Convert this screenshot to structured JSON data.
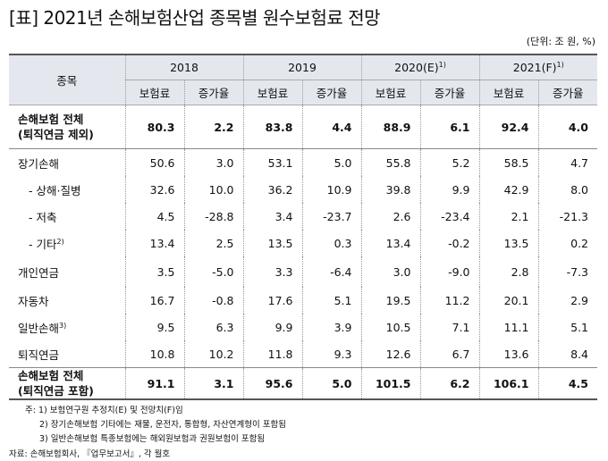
{
  "title": "[표] 2021년 손해보험산업 종목별 원수보험료 전망",
  "unit": "(단위: 조 원, %)",
  "table": {
    "corner": "종목",
    "years": [
      {
        "label": "2018"
      },
      {
        "label": "2019"
      },
      {
        "label": "2020(E)",
        "sup": "1)"
      },
      {
        "label": "2021(F)",
        "sup": "1)"
      }
    ],
    "sub": [
      "보험료",
      "증가율",
      "보험료",
      "증가율",
      "보험료",
      "증가율",
      "보험료",
      "증가율"
    ],
    "rows": [
      {
        "label": [
          "손해보험 전체",
          "(퇴직연금 제외)"
        ],
        "values": [
          "80.3",
          "2.2",
          "83.8",
          "4.4",
          "88.9",
          "6.1",
          "92.4",
          "4.0"
        ]
      },
      {
        "label": [
          "장기손해"
        ],
        "values": [
          "50.6",
          "3.0",
          "53.1",
          "5.0",
          "55.8",
          "5.2",
          "58.5",
          "4.7"
        ]
      },
      {
        "label": [
          "- 상해·질병"
        ],
        "values": [
          "32.6",
          "10.0",
          "36.2",
          "10.9",
          "39.8",
          "9.9",
          "42.9",
          "8.0"
        ]
      },
      {
        "label": [
          "- 저축"
        ],
        "values": [
          "4.5",
          "-28.8",
          "3.4",
          "-23.7",
          "2.6",
          "-23.4",
          "2.1",
          "-21.3"
        ]
      },
      {
        "label": [
          "- 기타"
        ],
        "sup": "2)",
        "values": [
          "13.4",
          "2.5",
          "13.5",
          "0.3",
          "13.4",
          "-0.2",
          "13.5",
          "0.2"
        ]
      },
      {
        "label": [
          "개인연금"
        ],
        "values": [
          "3.5",
          "-5.0",
          "3.3",
          "-6.4",
          "3.0",
          "-9.0",
          "2.8",
          "-7.3"
        ]
      },
      {
        "label": [
          "자동차"
        ],
        "values": [
          "16.7",
          "-0.8",
          "17.6",
          "5.1",
          "19.5",
          "11.2",
          "20.1",
          "2.9"
        ]
      },
      {
        "label": [
          "일반손해"
        ],
        "sup": "3)",
        "values": [
          "9.5",
          "6.3",
          "9.9",
          "3.9",
          "10.5",
          "7.1",
          "11.1",
          "5.1"
        ]
      },
      {
        "label": [
          "퇴직연금"
        ],
        "values": [
          "10.8",
          "10.2",
          "11.8",
          "9.3",
          "12.6",
          "6.7",
          "13.6",
          "8.4"
        ]
      },
      {
        "label": [
          "손해보험 전체",
          "(퇴직연금 포함)"
        ],
        "values": [
          "91.1",
          "3.1",
          "95.6",
          "5.0",
          "101.5",
          "6.2",
          "106.1",
          "4.5"
        ]
      }
    ]
  },
  "notes": [
    "주: 1) 보험연구원 추정치(E) 및 전망치(F)임",
    "2) 장기손해보험 기타에는 재물, 운전자, 통합형, 자산연계형이 포함됨",
    "3) 일반손해보험 특종보험에는 해외원보험과 권원보험이 포함됨"
  ],
  "source": "자료: 손해보험회사, 『업무보고서』, 각 월호"
}
